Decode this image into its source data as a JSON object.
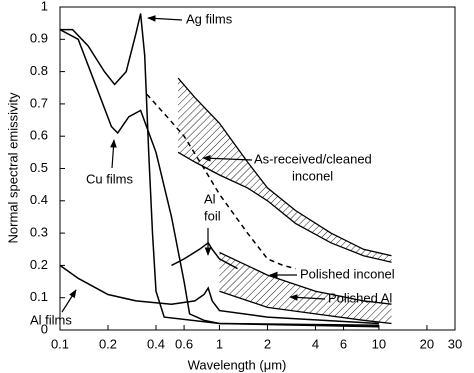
{
  "chart_data": {
    "type": "line",
    "xlabel": "Wavelength (μm)",
    "ylabel": "Normal spectral emissivity",
    "xscale": "log",
    "xlim": [
      0.1,
      30
    ],
    "ylim": [
      0,
      1
    ],
    "xticks": [
      0.1,
      0.2,
      0.4,
      0.6,
      1,
      2,
      4,
      6,
      10,
      20,
      30
    ],
    "yticks": [
      0,
      0.1,
      0.2,
      0.3,
      0.4,
      0.5,
      0.6,
      0.7,
      0.8,
      0.9,
      1
    ],
    "color": "#000000",
    "series": [
      {
        "x": [
          0.1,
          0.12,
          0.15,
          0.19,
          0.22,
          0.26,
          0.3,
          0.32,
          0.34,
          0.36,
          0.38,
          0.4,
          0.45,
          1,
          10
        ],
        "values": [
          0.93,
          0.93,
          0.88,
          0.8,
          0.76,
          0.8,
          0.92,
          0.98,
          0.85,
          0.55,
          0.3,
          0.12,
          0.04,
          0.02,
          0.01
        ],
        "dash": false
      },
      {
        "x": [
          0.1,
          0.13,
          0.17,
          0.21,
          0.23,
          0.27,
          0.32,
          0.4,
          0.5,
          0.6,
          0.65,
          0.8,
          1,
          10
        ],
        "values": [
          0.93,
          0.9,
          0.75,
          0.63,
          0.61,
          0.66,
          0.68,
          0.55,
          0.35,
          0.15,
          0.05,
          0.03,
          0.02,
          0.015
        ],
        "dash": false
      },
      {
        "x": [
          0.35,
          0.45,
          0.6,
          0.8,
          1,
          1.5,
          2,
          2.5,
          3
        ],
        "values": [
          0.73,
          0.67,
          0.6,
          0.5,
          0.42,
          0.3,
          0.22,
          0.2,
          0.19
        ],
        "dash": true
      },
      {
        "x": [
          0.5,
          0.6,
          0.75,
          0.85,
          0.9,
          1,
          1.3
        ],
        "values": [
          0.2,
          0.22,
          0.25,
          0.27,
          0.25,
          0.22,
          0.19
        ],
        "dash": false
      },
      {
        "x": [
          0.1,
          0.13,
          0.2,
          0.3,
          0.5,
          0.7,
          0.8,
          0.85,
          0.9,
          1,
          2,
          10
        ],
        "values": [
          0.2,
          0.16,
          0.11,
          0.09,
          0.08,
          0.09,
          0.11,
          0.13,
          0.09,
          0.06,
          0.04,
          0.02
        ],
        "dash": false
      }
    ],
    "bands": [
      {
        "x": [
          0.55,
          0.7,
          1,
          1.5,
          2,
          3,
          5,
          8,
          12
        ],
        "upper": [
          0.78,
          0.72,
          0.64,
          0.52,
          0.44,
          0.37,
          0.3,
          0.25,
          0.23
        ],
        "lower": [
          0.55,
          0.52,
          0.48,
          0.44,
          0.4,
          0.33,
          0.27,
          0.23,
          0.21
        ]
      },
      {
        "x": [
          1,
          2,
          4,
          8,
          12
        ],
        "upper": [
          0.24,
          0.17,
          0.12,
          0.09,
          0.08
        ],
        "lower": [
          0.12,
          0.07,
          0.05,
          0.03,
          0.02
        ]
      }
    ],
    "annotations": [
      "Ag films",
      "Cu films",
      "As-received/cleaned",
      "inconel",
      "Al",
      "foil",
      "Polished inconel",
      "Polished Al",
      "Al films"
    ]
  }
}
